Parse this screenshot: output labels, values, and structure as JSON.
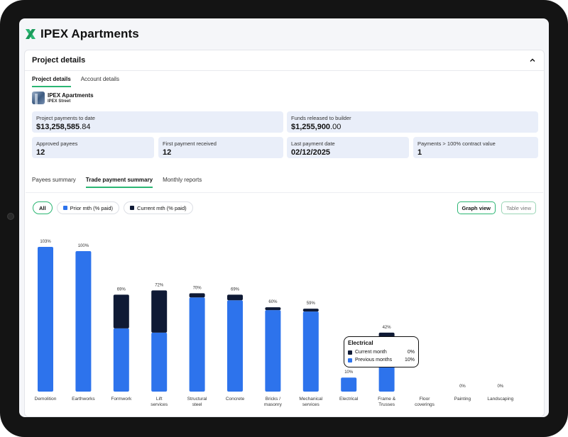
{
  "app": {
    "title": "IPEX Apartments"
  },
  "details": {
    "title": "Project details",
    "tabs": [
      "Project details",
      "Account details"
    ],
    "project_name": "IPEX Apartments",
    "project_street": "IPEX Street",
    "stats": {
      "payments_label": "Project payments to date",
      "payments_dollars": "$13,258,585",
      "payments_cents": ".84",
      "funds_label": "Funds released to builder",
      "funds_dollars": "$1,255,900",
      "funds_cents": ".00",
      "payees_label": "Approved payees",
      "payees_value": "12",
      "first_label": "First payment received",
      "first_value": "12",
      "last_label": "Last payment date",
      "last_value": "02/12/2025",
      "over_label": "Payments > 100% contract value",
      "over_value": "1"
    }
  },
  "report_tabs": [
    "Payees summary",
    "Trade payment summary",
    "Monthly reports"
  ],
  "legend": {
    "all": "All",
    "prior": "Prior mth (% paid)",
    "current": "Current mth (% paid)"
  },
  "views": {
    "graph": "Graph view",
    "table": "Table view"
  },
  "colors": {
    "prior": "#2d73ec",
    "current": "#0f1a35",
    "accent": "#2bb673"
  },
  "tooltip": {
    "title": "Electrical",
    "current_label": "Current month",
    "current_value": "0%",
    "previous_label": "Previous months",
    "previous_value": "10%"
  },
  "chart_data": {
    "type": "bar",
    "stacked": true,
    "categories": [
      [
        "Demolition"
      ],
      [
        "Earthworks"
      ],
      [
        "Formwork"
      ],
      [
        "Lift",
        "services"
      ],
      [
        "Structural",
        "steel"
      ],
      [
        "Concrete"
      ],
      [
        "Bricks /",
        "masonry"
      ],
      [
        "Mechanical",
        "services"
      ],
      [
        "Electrical"
      ],
      [
        "Frame &",
        "Trusses"
      ],
      [
        "Floor",
        "coverings"
      ],
      [
        "Painting"
      ],
      [
        "Landscaping"
      ]
    ],
    "series": [
      {
        "name": "Prior mth (% paid)",
        "values": [
          103,
          100,
          45,
          42,
          67,
          65,
          58,
          57,
          10,
          38,
          0,
          0,
          0
        ]
      },
      {
        "name": "Current mth (% paid)",
        "values": [
          0,
          0,
          24,
          30,
          3,
          4,
          2,
          2,
          0,
          4,
          0,
          0,
          0
        ]
      }
    ],
    "labels": [
      "103%",
      "100%",
      "69%",
      "72%",
      "70%",
      "69%",
      "60%",
      "59%",
      "10%",
      "42%",
      "",
      "0%",
      "0%"
    ],
    "ylim": [
      0,
      103
    ]
  }
}
